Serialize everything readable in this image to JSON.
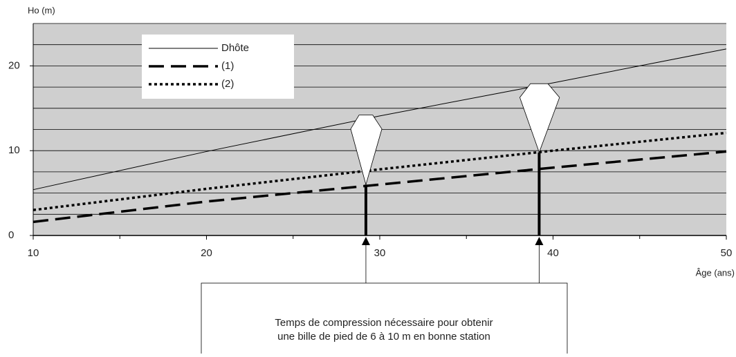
{
  "chart_data": {
    "type": "line",
    "y_label": "Ho (m)",
    "x_label": "Âge (ans)",
    "x": [
      10,
      20,
      30,
      40,
      50
    ],
    "series": [
      {
        "name": "Dhôte",
        "color": "#000000",
        "style": "solid",
        "values": [
          5.4,
          9.9,
          14.1,
          18.0,
          22.0
        ]
      },
      {
        "name": "(1)",
        "color": "#000000",
        "style": "dashed",
        "values": [
          1.6,
          4.0,
          6.0,
          8.0,
          9.9
        ]
      },
      {
        "name": "(2)",
        "color": "#000000",
        "style": "dotted",
        "values": [
          3.0,
          5.5,
          7.8,
          10.0,
          12.1
        ]
      }
    ],
    "xlim": [
      10,
      50
    ],
    "xticks": [
      10,
      20,
      30,
      40,
      50
    ],
    "xminor": [
      15,
      25,
      35,
      45
    ],
    "ylim": [
      0,
      25
    ],
    "yticks": [
      0,
      10,
      20
    ],
    "ygrid": [
      2.5,
      5,
      7.5,
      10,
      12.5,
      15,
      17.5,
      20,
      22.5,
      25
    ],
    "trees": [
      {
        "x": 29.2,
        "bole": 6.0,
        "top": 14.2
      },
      {
        "x": 39.2,
        "bole": 9.8,
        "top": 17.9
      }
    ],
    "annotation": [
      "Temps de compression nécessaire pour obtenir",
      "une bille de pied de 6 à 10 m en bonne station"
    ],
    "legend": "upper left"
  }
}
